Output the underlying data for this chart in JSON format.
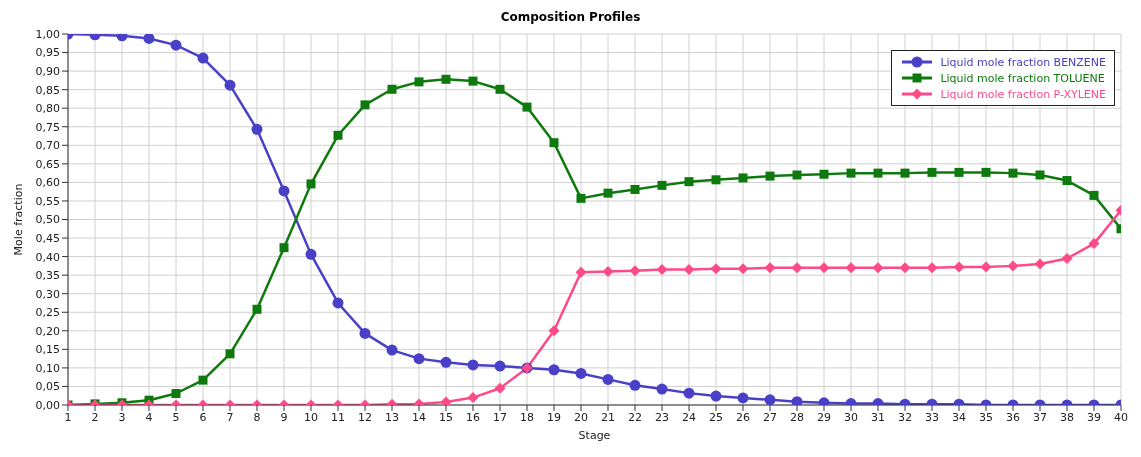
{
  "chart_data": {
    "type": "line",
    "title": "Composition Profiles",
    "xlabel": "Stage",
    "ylabel": "Mole fraction",
    "x": [
      1,
      2,
      3,
      4,
      5,
      6,
      7,
      8,
      9,
      10,
      11,
      12,
      13,
      14,
      15,
      16,
      17,
      18,
      19,
      20,
      21,
      22,
      23,
      24,
      25,
      26,
      27,
      28,
      29,
      30,
      31,
      32,
      33,
      34,
      35,
      36,
      37,
      38,
      39,
      40
    ],
    "xlim": [
      1,
      40
    ],
    "xticks": [
      1,
      2,
      3,
      4,
      5,
      6,
      7,
      8,
      9,
      10,
      11,
      12,
      13,
      14,
      15,
      16,
      17,
      18,
      19,
      20,
      21,
      22,
      23,
      24,
      25,
      26,
      27,
      28,
      29,
      30,
      31,
      32,
      33,
      34,
      35,
      36,
      37,
      38,
      39,
      40
    ],
    "ylim": [
      0,
      1
    ],
    "yticks": [
      {
        "value": 0,
        "label": "0,00"
      },
      {
        "value": 0.05,
        "label": "0,05"
      },
      {
        "value": 0.1,
        "label": "0,10"
      },
      {
        "value": 0.15,
        "label": "0,15"
      },
      {
        "value": 0.2,
        "label": "0,20"
      },
      {
        "value": 0.25,
        "label": "0,25"
      },
      {
        "value": 0.3,
        "label": "0,30"
      },
      {
        "value": 0.35,
        "label": "0,35"
      },
      {
        "value": 0.4,
        "label": "0,40"
      },
      {
        "value": 0.45,
        "label": "0,45"
      },
      {
        "value": 0.5,
        "label": "0,50"
      },
      {
        "value": 0.55,
        "label": "0,55"
      },
      {
        "value": 0.6,
        "label": "0,60"
      },
      {
        "value": 0.65,
        "label": "0,65"
      },
      {
        "value": 0.7,
        "label": "0,70"
      },
      {
        "value": 0.75,
        "label": "0,75"
      },
      {
        "value": 0.8,
        "label": "0,80"
      },
      {
        "value": 0.85,
        "label": "0,85"
      },
      {
        "value": 0.9,
        "label": "0,90"
      },
      {
        "value": 0.95,
        "label": "0,95"
      },
      {
        "value": 1,
        "label": "1,00"
      }
    ],
    "grid": true,
    "legend": "top right",
    "line_style": "solid",
    "series": [
      {
        "name": "Liquid mole fraction BENZENE",
        "color": "#4a40c8",
        "marker": "circle",
        "values": [
          1.0,
          0.998,
          0.995,
          0.988,
          0.97,
          0.935,
          0.862,
          0.743,
          0.577,
          0.406,
          0.275,
          0.193,
          0.148,
          0.125,
          0.115,
          0.108,
          0.105,
          0.1,
          0.095,
          0.085,
          0.069,
          0.053,
          0.043,
          0.032,
          0.024,
          0.019,
          0.014,
          0.009,
          0.006,
          0.004,
          0.004,
          0.002,
          0.002,
          0.002,
          0,
          0,
          0,
          0,
          0,
          0
        ]
      },
      {
        "name": "Liquid mole fraction TOLUENE",
        "color": "#0e7a0e",
        "marker": "square",
        "values": [
          0,
          0.003,
          0.006,
          0.013,
          0.031,
          0.067,
          0.138,
          0.258,
          0.424,
          0.596,
          0.727,
          0.809,
          0.851,
          0.871,
          0.878,
          0.873,
          0.851,
          0.803,
          0.707,
          0.557,
          0.571,
          0.581,
          0.592,
          0.602,
          0.607,
          0.612,
          0.617,
          0.62,
          0.622,
          0.625,
          0.625,
          0.625,
          0.627,
          0.627,
          0.627,
          0.625,
          0.62,
          0.605,
          0.565,
          0.475
        ]
      },
      {
        "name": "Liquid mole fraction P-XYLENE",
        "color": "#ff4a8a",
        "marker": "diamond",
        "values": [
          0,
          0,
          0,
          0,
          0,
          0,
          0,
          0,
          0,
          0,
          0,
          0,
          0.002,
          0.003,
          0.008,
          0.02,
          0.045,
          0.1,
          0.2,
          0.358,
          0.36,
          0.362,
          0.365,
          0.365,
          0.367,
          0.367,
          0.37,
          0.37,
          0.37,
          0.37,
          0.37,
          0.37,
          0.37,
          0.372,
          0.372,
          0.375,
          0.38,
          0.395,
          0.435,
          0.525
        ]
      }
    ]
  }
}
